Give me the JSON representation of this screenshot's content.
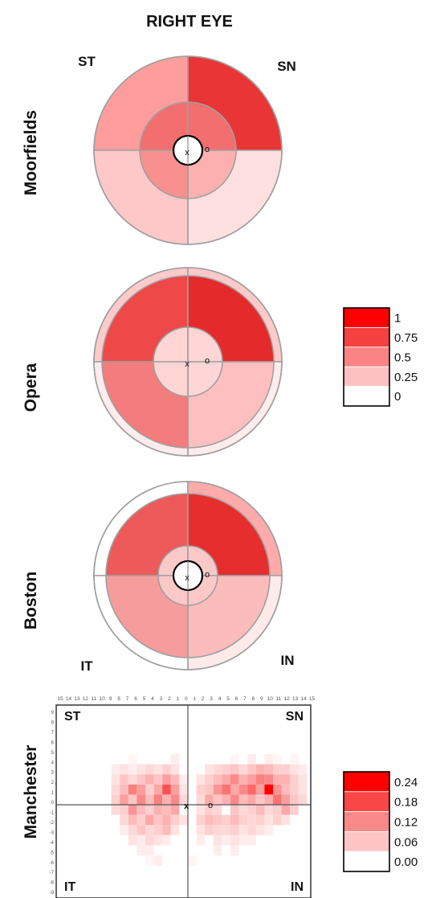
{
  "title": "RIGHT EYE",
  "colors": {
    "seg_stroke": "#a0a0a0",
    "outline": "#000000",
    "axis": "#555555"
  },
  "sectors": {
    "top_left": "ST",
    "top_right": "SN",
    "bottom_left": "IT",
    "bottom_right": "IN"
  },
  "markers": {
    "fovea": "x",
    "optic_disc": "o"
  },
  "maps": [
    {
      "name": "Moorfields",
      "has_fovea_circle": true,
      "show_corner_labels": "top",
      "rings": [
        {
          "ST": "#ff9c9c",
          "SN": "#e93536",
          "IN": "#ffe0e0",
          "IT": "#ffc8c8"
        },
        {
          "ST": "#f36e6e",
          "SN": "#f36e6e",
          "IN": "#fdb0b0",
          "IT": "#f89090"
        }
      ]
    },
    {
      "name": "Opera",
      "has_fovea_circle": false,
      "show_corner_labels": "none",
      "rings": [
        {
          "ST": "#ffcaca",
          "SN": "#ffcaca",
          "IN": "#ffecec",
          "IT": "#ffecec"
        },
        {
          "ST": "#ee4848",
          "SN": "#e52a2b",
          "IN": "#fdbfbf",
          "IT": "#f47c7c"
        },
        {
          "ST": "#ffd5d5",
          "SN": "#ffd5d5",
          "IN": "#ffd5d5",
          "IT": "#ffd5d5"
        }
      ]
    },
    {
      "name": "Boston",
      "has_fovea_circle": true,
      "show_corner_labels": "bottom",
      "rings": [
        {
          "ST": "#ffffff",
          "SN": "#ffabab",
          "IN": "#ffeaea",
          "IT": "#ffffff"
        },
        {
          "ST": "#ee5a5a",
          "SN": "#e62e2e",
          "IN": "#fcbcbc",
          "IT": "#f79c9c"
        },
        {
          "ST": "#fcc8c8",
          "SN": "#fcc8c8",
          "IN": "#fcc8c8",
          "IT": "#fcc8c8"
        }
      ]
    }
  ],
  "legend_rings": {
    "labels": [
      "1",
      "0.75",
      "0.5",
      "0.25",
      "0"
    ],
    "colors": [
      "#ff0000",
      "#f64141",
      "#fa8484",
      "#fec1c1",
      "#ffffff"
    ]
  },
  "manchester": {
    "name": "Manchester",
    "x_ticks": [
      "15",
      "14",
      "13",
      "12",
      "11",
      "10",
      "9",
      "8",
      "7",
      "6",
      "5",
      "4",
      "3",
      "2",
      "1",
      "0",
      "1",
      "2",
      "3",
      "4",
      "5",
      "6",
      "7",
      "8",
      "9",
      "10",
      "11",
      "12",
      "13",
      "14",
      "15"
    ],
    "y_ticks": [
      "9",
      "8",
      "7",
      "6",
      "5",
      "4",
      "3",
      "2",
      "1",
      "0",
      "-1",
      "-2",
      "-3",
      "-4",
      "-5",
      "-6",
      "-7",
      "-8",
      "-9"
    ],
    "legend": {
      "labels": [
        "0.24",
        "0.18",
        "0.12",
        "0.06",
        "0.00"
      ],
      "colors": [
        "#ff0000",
        "#f94646",
        "#fa8a8a",
        "#fec5c5",
        "#ffffff"
      ]
    },
    "max_value": 0.24,
    "cells": [
      [
        -7,
        5,
        0.01
      ],
      [
        -2,
        5,
        0.02
      ],
      [
        6,
        5,
        0.01
      ],
      [
        8,
        5,
        0.02
      ],
      [
        10,
        5,
        0.02
      ],
      [
        11,
        5,
        0.01
      ],
      [
        13,
        5,
        0.01
      ],
      [
        -9,
        4,
        0.02
      ],
      [
        -8,
        4,
        0.03
      ],
      [
        -7,
        4,
        0.02
      ],
      [
        -6,
        4,
        0.03
      ],
      [
        -5,
        4,
        0.04
      ],
      [
        -4,
        4,
        0.03
      ],
      [
        -3,
        4,
        0.05
      ],
      [
        -2,
        4,
        0.03
      ],
      [
        3,
        4,
        0.03
      ],
      [
        4,
        4,
        0.04
      ],
      [
        5,
        4,
        0.05
      ],
      [
        6,
        4,
        0.06
      ],
      [
        7,
        4,
        0.04
      ],
      [
        8,
        4,
        0.06
      ],
      [
        9,
        4,
        0.08
      ],
      [
        10,
        4,
        0.07
      ],
      [
        11,
        4,
        0.05
      ],
      [
        12,
        4,
        0.05
      ],
      [
        13,
        4,
        0.03
      ],
      [
        14,
        4,
        0.02
      ],
      [
        -9,
        3,
        0.03
      ],
      [
        -8,
        3,
        0.06
      ],
      [
        -7,
        3,
        0.04
      ],
      [
        -6,
        3,
        0.06
      ],
      [
        -5,
        3,
        0.08
      ],
      [
        -4,
        3,
        0.06
      ],
      [
        -3,
        3,
        0.1
      ],
      [
        -2,
        3,
        0.07
      ],
      [
        -1,
        3,
        0.02
      ],
      [
        2,
        3,
        0.03
      ],
      [
        3,
        3,
        0.05
      ],
      [
        4,
        3,
        0.07
      ],
      [
        5,
        3,
        0.09
      ],
      [
        6,
        3,
        0.12
      ],
      [
        7,
        3,
        0.08
      ],
      [
        8,
        3,
        0.1
      ],
      [
        9,
        3,
        0.13
      ],
      [
        10,
        3,
        0.12
      ],
      [
        11,
        3,
        0.08
      ],
      [
        12,
        3,
        0.08
      ],
      [
        13,
        3,
        0.05
      ],
      [
        14,
        3,
        0.03
      ],
      [
        -9,
        2,
        0.04
      ],
      [
        -8,
        2,
        0.07
      ],
      [
        -7,
        2,
        0.13
      ],
      [
        -6,
        2,
        0.1
      ],
      [
        -5,
        2,
        0.05
      ],
      [
        -4,
        2,
        0.09
      ],
      [
        -3,
        2,
        0.17
      ],
      [
        -2,
        2,
        0.1
      ],
      [
        -1,
        2,
        0.03
      ],
      [
        2,
        2,
        0.05
      ],
      [
        3,
        2,
        0.06
      ],
      [
        4,
        2,
        0.11
      ],
      [
        5,
        2,
        0.14
      ],
      [
        6,
        2,
        0.09
      ],
      [
        7,
        2,
        0.12
      ],
      [
        8,
        2,
        0.15
      ],
      [
        9,
        2,
        0.1
      ],
      [
        10,
        2,
        0.24
      ],
      [
        11,
        2,
        0.11
      ],
      [
        12,
        2,
        0.07
      ],
      [
        13,
        2,
        0.05
      ],
      [
        14,
        2,
        0.03
      ],
      [
        -9,
        1,
        0.05
      ],
      [
        -8,
        1,
        0.1
      ],
      [
        -7,
        1,
        0.06
      ],
      [
        -6,
        1,
        0.12
      ],
      [
        -5,
        1,
        0.07
      ],
      [
        -4,
        1,
        0.13
      ],
      [
        -3,
        1,
        0.08
      ],
      [
        -2,
        1,
        0.12
      ],
      [
        -1,
        1,
        0.04
      ],
      [
        2,
        1,
        0.04
      ],
      [
        3,
        1,
        0.09
      ],
      [
        4,
        1,
        0.06
      ],
      [
        5,
        1,
        0.08
      ],
      [
        6,
        1,
        0.12
      ],
      [
        7,
        1,
        0.07
      ],
      [
        8,
        1,
        0.09
      ],
      [
        9,
        1,
        0.06
      ],
      [
        10,
        1,
        0.08
      ],
      [
        11,
        1,
        0.14
      ],
      [
        12,
        1,
        0.1
      ],
      [
        13,
        1,
        0.06
      ],
      [
        14,
        1,
        0.04
      ],
      [
        -9,
        0,
        0.04
      ],
      [
        -8,
        0,
        0.05
      ],
      [
        -7,
        0,
        0.11
      ],
      [
        -6,
        0,
        0.07
      ],
      [
        -5,
        0,
        0.05
      ],
      [
        -4,
        0,
        0.08
      ],
      [
        -3,
        0,
        0.07
      ],
      [
        -2,
        0,
        0.09
      ],
      [
        2,
        0,
        0.03
      ],
      [
        3,
        0,
        0.05
      ],
      [
        4,
        0,
        0.04
      ],
      [
        6,
        0,
        0.06
      ],
      [
        7,
        0,
        0.04
      ],
      [
        8,
        0,
        0.05
      ],
      [
        9,
        0,
        0.07
      ],
      [
        10,
        0,
        0.04
      ],
      [
        11,
        0,
        0.05
      ],
      [
        12,
        0,
        0.09
      ],
      [
        13,
        0,
        0.05
      ],
      [
        -8,
        -1,
        0.04
      ],
      [
        -7,
        -1,
        0.07
      ],
      [
        -6,
        -1,
        0.05
      ],
      [
        -5,
        -1,
        0.09
      ],
      [
        -4,
        -1,
        0.06
      ],
      [
        -3,
        -1,
        0.08
      ],
      [
        -2,
        -1,
        0.05
      ],
      [
        -1,
        -1,
        0.03
      ],
      [
        2,
        -1,
        0.05
      ],
      [
        3,
        -1,
        0.07
      ],
      [
        4,
        -1,
        0.06
      ],
      [
        5,
        -1,
        0.05
      ],
      [
        6,
        -1,
        0.07
      ],
      [
        7,
        -1,
        0.05
      ],
      [
        8,
        -1,
        0.04
      ],
      [
        9,
        -1,
        0.05
      ],
      [
        10,
        -1,
        0.03
      ],
      [
        11,
        -1,
        0.05
      ],
      [
        12,
        -1,
        0.03
      ],
      [
        -8,
        -2,
        0.02
      ],
      [
        -7,
        -2,
        0.04
      ],
      [
        -6,
        -2,
        0.06
      ],
      [
        -5,
        -2,
        0.04
      ],
      [
        -4,
        -2,
        0.05
      ],
      [
        -3,
        -2,
        0.07
      ],
      [
        -2,
        -2,
        0.03
      ],
      [
        2,
        -2,
        0.03
      ],
      [
        3,
        -2,
        0.05
      ],
      [
        4,
        -2,
        0.04
      ],
      [
        5,
        -2,
        0.04
      ],
      [
        6,
        -2,
        0.05
      ],
      [
        7,
        -2,
        0.03
      ],
      [
        8,
        -2,
        0.04
      ],
      [
        9,
        -2,
        0.03
      ],
      [
        10,
        -2,
        0.02
      ],
      [
        -7,
        -3,
        0.03
      ],
      [
        -6,
        -3,
        0.02
      ],
      [
        -5,
        -3,
        0.04
      ],
      [
        -4,
        -3,
        0.03
      ],
      [
        -3,
        -3,
        0.02
      ],
      [
        2,
        -3,
        0.02
      ],
      [
        4,
        -3,
        0.03
      ],
      [
        5,
        -3,
        0.02
      ],
      [
        6,
        -3,
        0.03
      ],
      [
        7,
        -3,
        0.02
      ],
      [
        8,
        -3,
        0.02
      ],
      [
        -6,
        -4,
        0.02
      ],
      [
        -5,
        -4,
        0.02
      ],
      [
        4,
        -4,
        0.02
      ],
      [
        6,
        -4,
        0.02
      ],
      [
        -5,
        -5,
        0.01
      ],
      [
        -4,
        -5,
        0.02
      ],
      [
        1,
        -5,
        0.01
      ]
    ]
  }
}
